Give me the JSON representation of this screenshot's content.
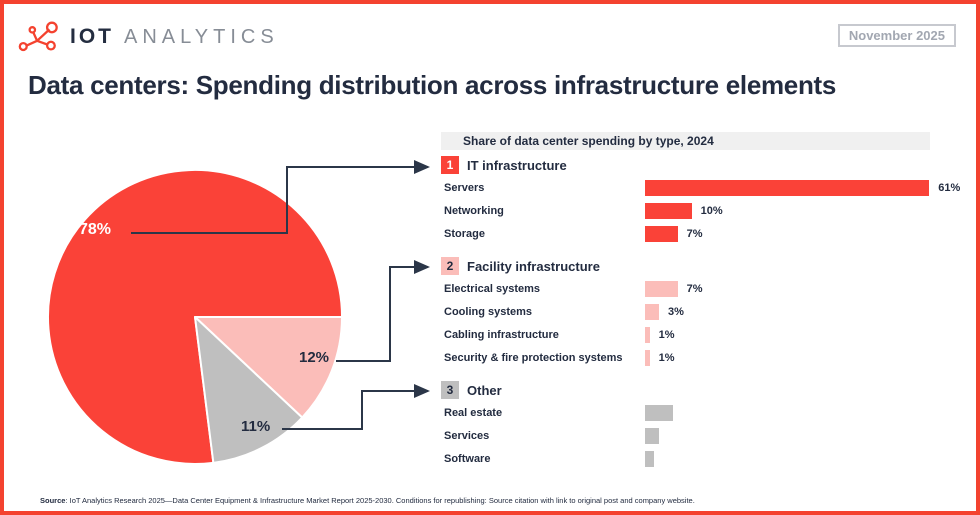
{
  "header": {
    "logo": {
      "iot": "IOT",
      "analytics": "ANALYTICS"
    },
    "date_badge": "November 2025"
  },
  "title": "Data centers: Spending distribution across infrastructure elements",
  "panel": {
    "header": "Share of data center spending by type, 2024"
  },
  "colors": {
    "brand_red": "#fa4238",
    "pink": "#fbbdb9",
    "gray": "#bfbfbf",
    "dark_navy": "#232c40",
    "connector": "#2b3648",
    "panel_header_bg": "#f0f0f0"
  },
  "sections": [
    {
      "number": "1",
      "title": "IT infrastructure",
      "color": "#fa4238",
      "badge_text_color": "#ffffff",
      "rows": [
        {
          "label": "Servers",
          "value": 61,
          "value_label": "61%"
        },
        {
          "label": "Networking",
          "value": 10,
          "value_label": "10%"
        },
        {
          "label": "Storage",
          "value": 7,
          "value_label": "7%"
        }
      ]
    },
    {
      "number": "2",
      "title": "Facility infrastructure",
      "color": "#fbbdb9",
      "badge_text_color": "#232c40",
      "rows": [
        {
          "label": "Electrical systems",
          "value": 7,
          "value_label": "7%"
        },
        {
          "label": "Cooling systems",
          "value": 3,
          "value_label": "3%"
        },
        {
          "label": "Cabling infrastructure",
          "value": 1,
          "value_label": "1%"
        },
        {
          "label": "Security & fire protection systems",
          "value": 1,
          "value_label": "1%"
        }
      ]
    },
    {
      "number": "3",
      "title": "Other",
      "color": "#bfbfbf",
      "badge_text_color": "#232c40",
      "rows": [
        {
          "label": "Real estate",
          "value": 6,
          "value_label": ""
        },
        {
          "label": "Services",
          "value": 3,
          "value_label": ""
        },
        {
          "label": "Software",
          "value": 2,
          "value_label": ""
        }
      ]
    }
  ],
  "chart_data": [
    {
      "type": "pie",
      "labels": [
        "IT infrastructure",
        "Facility infrastructure",
        "Other"
      ],
      "values": [
        78,
        12,
        11
      ],
      "colors": [
        "#fa4238",
        "#fbbdb9",
        "#bfbfbf"
      ],
      "data_labels": [
        "78%",
        "12%",
        "11%"
      ],
      "legend": "none",
      "start_angle_deg_from_east_clockwise": 0,
      "slice_order_clockwise_from_east": [
        "Facility infrastructure",
        "Other",
        "IT infrastructure"
      ]
    },
    {
      "type": "bar",
      "orientation": "horizontal",
      "title": "Share of data center spending by type, 2024",
      "unit": "%",
      "xlim": [
        0,
        61
      ],
      "grid": false,
      "series": [
        {
          "name": "IT infrastructure",
          "color": "#fa4238",
          "categories": [
            "Servers",
            "Networking",
            "Storage"
          ],
          "values": [
            61,
            10,
            7
          ],
          "value_labels": [
            "61%",
            "10%",
            "7%"
          ]
        },
        {
          "name": "Facility infrastructure",
          "color": "#fbbdb9",
          "categories": [
            "Electrical systems",
            "Cooling systems",
            "Cabling infrastructure",
            "Security & fire protection systems"
          ],
          "values": [
            7,
            3,
            1,
            1
          ],
          "value_labels": [
            "7%",
            "3%",
            "1%",
            "1%"
          ]
        },
        {
          "name": "Other",
          "color": "#bfbfbf",
          "values_estimated_from_bar_width": true,
          "categories": [
            "Real estate",
            "Services",
            "Software"
          ],
          "values": [
            6,
            3,
            2
          ],
          "value_labels": [
            "",
            "",
            ""
          ]
        }
      ]
    }
  ],
  "source": {
    "label": "Source",
    "text": ": IoT Analytics Research 2025—Data Center Equipment & Infrastructure Market Report 2025-2030. Conditions for republishing: Source citation with link to original post and company website."
  }
}
